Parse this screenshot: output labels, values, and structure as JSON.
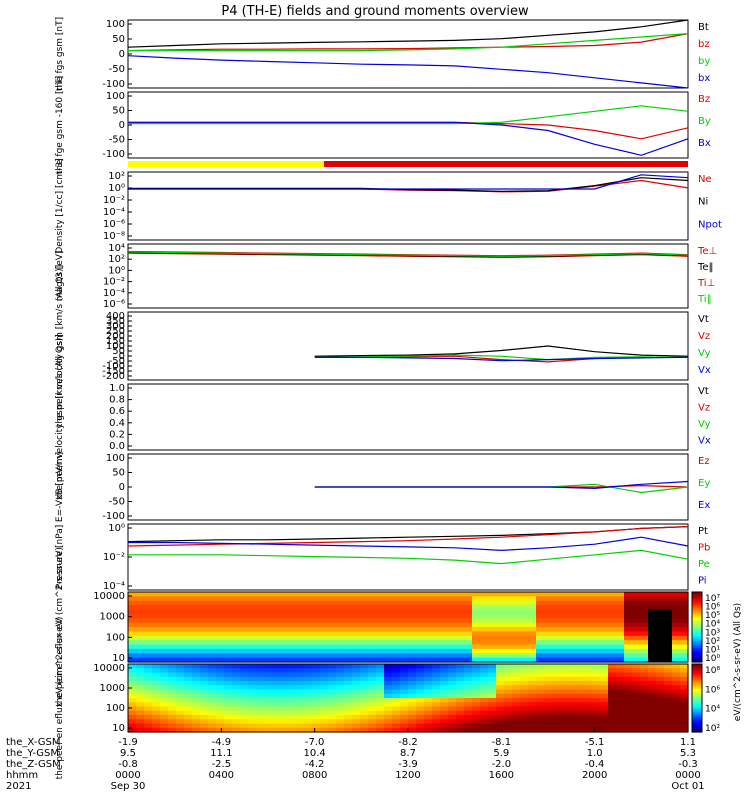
{
  "title": "P4 (TH-E) fields and ground moments overview",
  "colors": {
    "black": "#000000",
    "red": "#e00000",
    "green": "#00d000",
    "blue": "#0000e0",
    "yellow": "#ffff00"
  },
  "mode_bar": {
    "segments": [
      "yellow",
      "red",
      "red"
    ]
  },
  "chart_data": [
    {
      "type": "line",
      "ylabel": "the fgs gsm [nT]",
      "yticks": [
        "100",
        "50",
        "0",
        "-50",
        "-100"
      ],
      "ylim": [
        -100,
        100
      ],
      "series": [
        {
          "name": "Bt",
          "color": "black",
          "values": [
            20,
            25,
            30,
            32,
            34,
            36,
            38,
            40,
            45,
            55,
            65,
            80,
            100
          ]
        },
        {
          "name": "bz",
          "color": "red",
          "values": [
            10,
            12,
            14,
            14,
            15,
            15,
            16,
            18,
            20,
            22,
            25,
            35,
            60
          ]
        },
        {
          "name": "by",
          "color": "green",
          "values": [
            10,
            10,
            10,
            10,
            10,
            10,
            12,
            15,
            20,
            30,
            40,
            50,
            60
          ]
        },
        {
          "name": "bx",
          "color": "blue",
          "values": [
            -5,
            -12,
            -18,
            -22,
            -26,
            -30,
            -32,
            -35,
            -45,
            -55,
            -70,
            -85,
            -100
          ]
        }
      ]
    },
    {
      "type": "line",
      "ylabel": "the fge gsm -160 [nT]",
      "yticks": [
        "100",
        "50",
        "0",
        "-50",
        "-100"
      ],
      "ylim": [
        -130,
        110
      ],
      "series": [
        {
          "name": "Bz",
          "color": "red",
          "values": [
            0,
            0,
            0,
            0,
            0,
            0,
            0,
            0,
            -5,
            -10,
            -30,
            -60,
            -20
          ]
        },
        {
          "name": "By",
          "color": "green",
          "values": [
            -5,
            -5,
            -5,
            -5,
            -5,
            -5,
            -5,
            -5,
            0,
            20,
            40,
            60,
            40
          ]
        },
        {
          "name": "Bx",
          "color": "blue",
          "values": [
            0,
            0,
            0,
            0,
            0,
            0,
            0,
            0,
            -10,
            -30,
            -80,
            -120,
            -60
          ]
        }
      ]
    },
    {
      "type": "line",
      "ylabel": "Density [1/cc] [cm-3]",
      "yticks": [
        "10²",
        "10⁰",
        "10⁻²",
        "10⁻⁴",
        "10⁻⁶",
        "10⁻⁸"
      ],
      "ylim": [
        -9,
        3
      ],
      "series": [
        {
          "name": "Ne",
          "color": "red",
          "values": [
            0,
            0,
            0,
            0,
            0,
            0,
            -0.2,
            -0.3,
            -0.5,
            -0.4,
            0.5,
            1.5,
            0.2
          ]
        },
        {
          "name": "Ni",
          "color": "black",
          "values": [
            0.1,
            0.1,
            0.1,
            0.1,
            0.1,
            0.1,
            -0.1,
            -0.2,
            -0.4,
            -0.3,
            0.6,
            2,
            1.5
          ]
        },
        {
          "name": "Npot",
          "color": "blue",
          "values": [
            0,
            0,
            0,
            0,
            0,
            0,
            0,
            0,
            0,
            0,
            0,
            2.5,
            2
          ]
        }
      ]
    },
    {
      "type": "line",
      "ylabel": "magt3 [eV]",
      "yticks": [
        "10⁴",
        "10²",
        "10⁰",
        "10⁻²",
        "10⁻⁴",
        "10⁻⁶"
      ],
      "ylim": [
        -7,
        5
      ],
      "series": [
        {
          "name": "Te⊥",
          "color": "red",
          "values": [
            3.3,
            3.2,
            3.1,
            3.0,
            2.9,
            2.8,
            2.7,
            2.6,
            2.5,
            2.6,
            2.8,
            3.0,
            2.7
          ]
        },
        {
          "name": "Te‖",
          "color": "black",
          "values": [
            3.4,
            3.3,
            3.2,
            3.1,
            3.0,
            2.9,
            2.8,
            2.7,
            2.6,
            2.7,
            2.9,
            3.1,
            2.8
          ]
        },
        {
          "name": "Ti⊥",
          "color": "red",
          "values": [
            3.6,
            3.5,
            3.4,
            3.3,
            3.2,
            3.1,
            3.0,
            2.9,
            2.8,
            2.9,
            3.1,
            3.3,
            3.0
          ]
        },
        {
          "name": "Ti‖",
          "color": "green",
          "values": [
            3.5,
            3.4,
            3.3,
            3.2,
            3.1,
            3.0,
            2.9,
            2.8,
            2.7,
            2.8,
            3.0,
            3.2,
            2.9
          ]
        }
      ]
    },
    {
      "type": "line",
      "ylabel": "the peir velocity gsm [km/s (All Qs)]",
      "yticks": [
        "400",
        "350",
        "300",
        "250",
        "200",
        "150",
        "100",
        "50",
        "0",
        "-50",
        "-100",
        "-150",
        "-200"
      ],
      "ylim": [
        -200,
        400
      ],
      "series": [
        {
          "name": "Vt",
          "color": "black",
          "values": [
            null,
            null,
            null,
            null,
            10,
            15,
            20,
            30,
            60,
            100,
            50,
            20,
            10
          ]
        },
        {
          "name": "Vz",
          "color": "red",
          "values": [
            null,
            null,
            null,
            null,
            0,
            0,
            5,
            10,
            -20,
            -40,
            -10,
            0,
            0
          ]
        },
        {
          "name": "Vy",
          "color": "green",
          "values": [
            null,
            null,
            null,
            null,
            0,
            5,
            10,
            20,
            10,
            -20,
            0,
            5,
            0
          ]
        },
        {
          "name": "Vx",
          "color": "blue",
          "values": [
            null,
            null,
            null,
            null,
            0,
            0,
            -5,
            -10,
            -30,
            -20,
            -10,
            -5,
            0
          ]
        }
      ]
    },
    {
      "type": "line",
      "ylabel": "the peer velocity gsm [km/s (All Qs)]",
      "yticks": [
        "1.0",
        "0.8",
        "0.6",
        "0.4",
        "0.2",
        "0.0"
      ],
      "ylim": [
        0,
        1
      ],
      "series": [
        {
          "name": "Vt",
          "color": "black",
          "values": []
        },
        {
          "name": "Vz",
          "color": "red",
          "values": []
        },
        {
          "name": "Vy",
          "color": "green",
          "values": []
        },
        {
          "name": "Vx",
          "color": "blue",
          "values": []
        }
      ]
    },
    {
      "type": "line",
      "ylabel": "E=-VxB [mV/m]",
      "yticks": [
        "100",
        "50",
        "0",
        "-50",
        "-100"
      ],
      "ylim": [
        -120,
        120
      ],
      "series": [
        {
          "name": "Ez",
          "color": "red",
          "values": [
            null,
            null,
            null,
            null,
            0,
            0,
            0,
            0,
            0,
            0,
            0,
            5,
            0
          ]
        },
        {
          "name": "Ey",
          "color": "green",
          "values": [
            null,
            null,
            null,
            null,
            0,
            0,
            0,
            0,
            0,
            0,
            10,
            -20,
            0
          ]
        },
        {
          "name": "Ex",
          "color": "blue",
          "values": [
            null,
            null,
            null,
            null,
            0,
            0,
            0,
            0,
            0,
            0,
            -5,
            10,
            20
          ]
        }
      ]
    },
    {
      "type": "line",
      "ylabel": "Pressure [nPa]",
      "yticks": [
        "10⁰",
        "10⁻²",
        "10⁻⁴"
      ],
      "ylim": [
        -6,
        1.5
      ],
      "series": [
        {
          "name": "Pt",
          "color": "black",
          "values": [
            -0.5,
            -0.4,
            -0.3,
            -0.3,
            -0.2,
            -0.1,
            0,
            0.1,
            0.2,
            0.4,
            0.6,
            1,
            1.2
          ]
        },
        {
          "name": "Pb",
          "color": "red",
          "values": [
            -1,
            -0.9,
            -0.8,
            -0.7,
            -0.6,
            -0.5,
            -0.4,
            -0.2,
            0,
            0.3,
            0.6,
            1,
            1.2
          ]
        },
        {
          "name": "Pe",
          "color": "green",
          "values": [
            -2,
            -2,
            -2,
            -2.1,
            -2.2,
            -2.3,
            -2.4,
            -2.6,
            -3,
            -2.5,
            -2,
            -1.5,
            -2.5
          ]
        },
        {
          "name": "Pi",
          "color": "blue",
          "values": [
            -0.6,
            -0.6,
            -0.7,
            -0.8,
            -0.9,
            -1,
            -1.1,
            -1.2,
            -1.5,
            -1.2,
            -0.8,
            0,
            -1
          ]
        }
      ]
    },
    {
      "type": "heatmap",
      "ylabel": "the peir en eflux eV (cm^2-s-sr-eV)",
      "yticks": [
        "10000",
        "1000",
        "100",
        "10"
      ],
      "colorbar_label": "eV/(cm^2-s-sr-eV) (All Qs)",
      "colorbar_ticks": [
        "10⁷",
        "10⁶",
        "10⁵",
        "10⁴",
        "10³",
        "10²",
        "10¹",
        "10⁰"
      ]
    },
    {
      "type": "heatmap",
      "ylabel": "the peer en eflux eV (cm^2-s-sr-eV)",
      "yticks": [
        "10000",
        "1000",
        "100",
        "10"
      ],
      "colorbar_ticks": [
        "10⁸",
        "10⁶",
        "10⁴",
        "10²"
      ]
    }
  ],
  "xaxis": {
    "row_labels": [
      "the_X-GSM",
      "the_Y-GSM",
      "the_Z-GSM",
      "hhmm",
      "2021"
    ],
    "ticks": [
      {
        "vals": [
          "-1.9",
          "9.5",
          "-0.8",
          "0000",
          "Sep 30"
        ]
      },
      {
        "vals": [
          "-4.9",
          "11.1",
          "-2.5",
          "0400",
          ""
        ]
      },
      {
        "vals": [
          "-7.0",
          "10.4",
          "-4.2",
          "0800",
          ""
        ]
      },
      {
        "vals": [
          "-8.2",
          "8.7",
          "-3.9",
          "1200",
          ""
        ]
      },
      {
        "vals": [
          "-8.1",
          "5.9",
          "-2.0",
          "1600",
          ""
        ]
      },
      {
        "vals": [
          "-5.1",
          "1.0",
          "-0.4",
          "2000",
          ""
        ]
      },
      {
        "vals": [
          "1.1",
          "5.3",
          "-0.3",
          "0000",
          "Oct 01"
        ]
      }
    ]
  }
}
